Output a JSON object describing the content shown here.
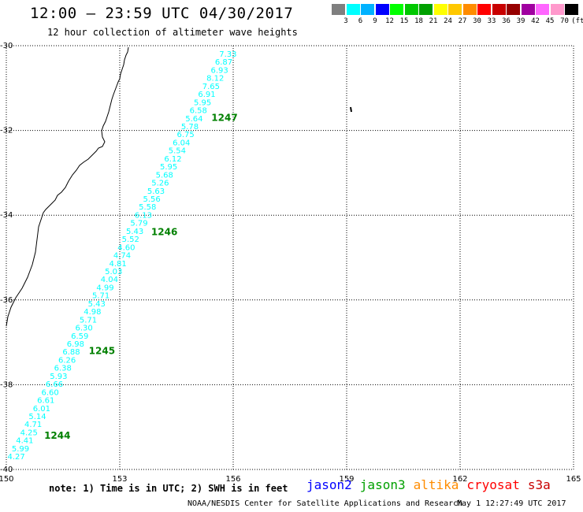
{
  "header": {
    "title": "12:00 – 23:59 UTC 04/30/2017",
    "subtitle": "12 hour collection of altimeter wave heights"
  },
  "color_scale": {
    "labels": [
      "3",
      "6",
      "9",
      "12",
      "15",
      "18",
      "21",
      "24",
      "27",
      "30",
      "33",
      "36",
      "39",
      "42",
      "45",
      "70"
    ],
    "unit": "(ft)",
    "colors": [
      "#7f7f7f",
      "#00ffff",
      "#00b2ff",
      "#0000ff",
      "#00ff00",
      "#00c800",
      "#00a000",
      "#ffff00",
      "#ffc800",
      "#ff8c00",
      "#ff0000",
      "#c80000",
      "#960000",
      "#a000a0",
      "#ff66ff",
      "#ff99cc",
      "#000000"
    ]
  },
  "map": {
    "lon_labels": [
      "150",
      "153",
      "156",
      "159",
      "162",
      "165"
    ],
    "lat_labels": [
      "-30",
      "-32",
      "-34",
      "-36",
      "-38",
      "-40"
    ],
    "grid_lon": [
      150,
      153,
      156,
      159,
      162,
      165
    ],
    "grid_lat": [
      -30,
      -32,
      -34,
      -36,
      -38,
      -40
    ],
    "lon_range": [
      150,
      165
    ],
    "lat_range": [
      -40,
      -30
    ]
  },
  "chart_data": {
    "type": "scatter",
    "title": "12:00 – 23:59 UTC 04/30/2017",
    "subtitle": "12 hour collection of altimeter wave heights",
    "xlabel": "",
    "ylabel": "",
    "xlim": [
      150,
      165
    ],
    "ylim": [
      -40,
      -30
    ],
    "series": [
      {
        "name": "jason3",
        "color": "#00ffff",
        "track_start": [
          155.8,
          -30.0
        ],
        "track_end": [
          150.2,
          -39.5
        ],
        "swh_ft": [
          "7.33",
          "6.87",
          "6.93",
          "8.12",
          "7.65",
          "6.91",
          "5.95",
          "6.58",
          "5.64",
          "5.78",
          "6.75",
          "6.04",
          "5.54",
          "6.12",
          "5.95",
          "5.68",
          "5.26",
          "5.63",
          "5.56",
          "5.58",
          "6.13",
          "5.79",
          "5.43",
          "5.52",
          "4.60",
          "4.74",
          "4.81",
          "5.03",
          "4.04",
          "4.99",
          "5.71",
          "5.43",
          "4.98",
          "5.71",
          "6.30",
          "6.59",
          "6.98",
          "6.88",
          "6.26",
          "6.38",
          "5.93",
          "6.66",
          "6.60",
          "6.61",
          "6.01",
          "5.14",
          "4.71",
          "4.25",
          "4.41",
          "5.99",
          "4.27"
        ]
      }
    ],
    "time_labels": [
      "1247",
      "1246",
      "1245",
      "1244"
    ],
    "time_label_latitudes": [
      -31.7,
      -34.4,
      -37.2,
      -39.2
    ]
  },
  "notes": {
    "note": "note:  1) Time is in UTC;  2) SWH is in feet",
    "satellites": [
      {
        "name": "jason2",
        "color": "#0000ff"
      },
      {
        "name": "jason3",
        "color": "#00a000"
      },
      {
        "name": "altika",
        "color": "#ff8c00"
      },
      {
        "name": "cryosat",
        "color": "#ff0000"
      },
      {
        "name": "s3a",
        "color": "#c80000"
      }
    ],
    "credit": "NOAA/NESDIS Center for Satellite Applications and Research",
    "timestamp": "May  1 12:27:49 UTC 2017"
  }
}
